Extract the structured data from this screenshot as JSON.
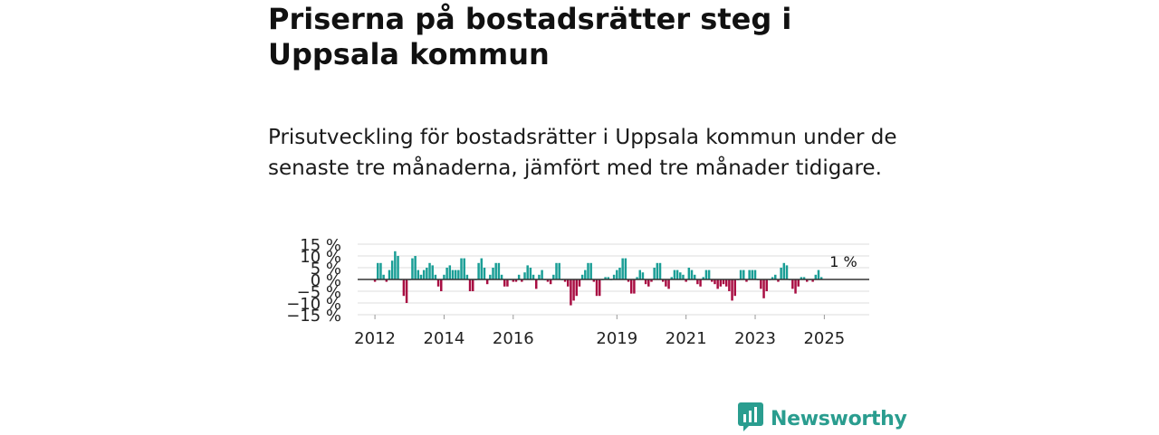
{
  "title": "Priserna på bostadsrätter steg i Uppsala kommun",
  "subtitle": "Prisutveckling för bostadsrätter i Uppsala kommun under de senaste tre månaderna, jämfört med tre månader tidigare.",
  "brand": {
    "name": "Newsworthy",
    "logo_icon": "newsworthy-logo-icon"
  },
  "colors": {
    "positive": "#1a9e96",
    "negative": "#a80d42",
    "grid": "#dddddd",
    "zero": "#333333",
    "brand": "#2a9d8f"
  },
  "chart_data": {
    "type": "bar",
    "title": "Priserna på bostadsrätter steg i Uppsala kommun",
    "xlabel": "",
    "ylabel": "",
    "ylim": [
      -15,
      15
    ],
    "yticks": [
      15,
      10,
      5,
      0,
      -5,
      -10,
      -15
    ],
    "ytick_labels": [
      "15 %",
      "10 %",
      "5 %",
      "0 %",
      "−5 %",
      "−10 %",
      "−15 %"
    ],
    "xlim": [
      2011.5,
      2026.3
    ],
    "xticks": [
      2012,
      2014,
      2016,
      2019,
      2021,
      2023,
      2025
    ],
    "xtick_labels": [
      "2012",
      "2014",
      "2016",
      "2019",
      "2021",
      "2023",
      "2025"
    ],
    "annotation": {
      "text": "1 %",
      "x": 2025.5,
      "value": 1
    },
    "series": [
      {
        "name": "Prisutveckling",
        "start": 2012.0,
        "step": 0.08333,
        "values": [
          -1,
          7,
          7,
          2,
          -1,
          4,
          8,
          12,
          10,
          0,
          -7,
          -10,
          0,
          9,
          10,
          4,
          2,
          4,
          5,
          7,
          6,
          2,
          -3,
          -5,
          2,
          5,
          6,
          4,
          4,
          4,
          9,
          9,
          2,
          -5,
          -5,
          0,
          7,
          9,
          5,
          -2,
          2,
          5,
          7,
          7,
          2,
          -3,
          -3,
          0,
          -1,
          -1,
          2,
          -1,
          3,
          6,
          5,
          2,
          -4,
          2,
          4,
          0,
          -1,
          -2,
          2,
          7,
          7,
          0,
          -1,
          -3,
          -11,
          -9,
          -7,
          -3,
          2,
          4,
          7,
          7,
          -1,
          -7,
          -7,
          0,
          1,
          1,
          0,
          2,
          4,
          5,
          9,
          9,
          -1,
          -6,
          -6,
          1,
          4,
          3,
          -2,
          -3,
          -1,
          5,
          7,
          7,
          -1,
          -3,
          -4,
          1,
          4,
          4,
          3,
          2,
          -1,
          5,
          4,
          2,
          -2,
          -3,
          1,
          4,
          4,
          -1,
          -2,
          -4,
          -3,
          -2,
          -3,
          -5,
          -9,
          -7,
          0,
          4,
          4,
          -1,
          4,
          4,
          4,
          0,
          -4,
          -8,
          -5,
          0,
          1,
          2,
          -1,
          5,
          7,
          6,
          0,
          -4,
          -6,
          -3,
          1,
          1,
          -1,
          0,
          -1,
          2,
          4,
          1
        ]
      }
    ]
  }
}
